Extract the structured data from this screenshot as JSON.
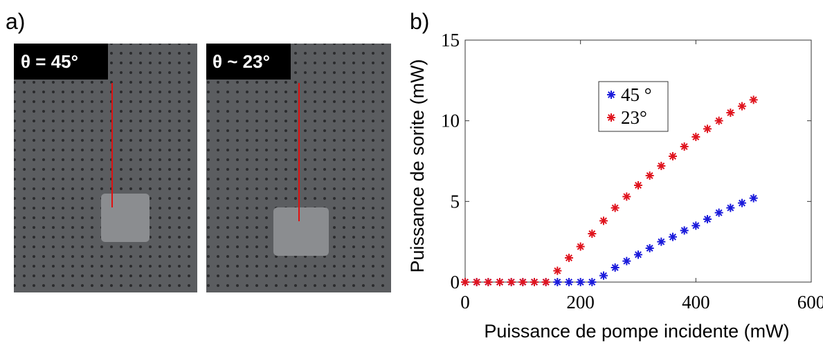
{
  "panels": {
    "a": "a)",
    "b": "b)"
  },
  "photos": [
    {
      "caption": "θ = 45°"
    },
    {
      "caption": "θ ~ 23°"
    }
  ],
  "chart_data": {
    "type": "scatter",
    "xlabel": "Puissance de pompe incidente (mW)",
    "ylabel": "Puissance de sorite (mW)",
    "x": [
      0,
      20,
      40,
      60,
      80,
      100,
      120,
      140,
      160,
      180,
      200,
      220,
      240,
      260,
      280,
      300,
      320,
      340,
      360,
      380,
      400,
      420,
      440,
      460,
      480,
      500
    ],
    "series": [
      {
        "name": "45 °",
        "color": "#1a1adb",
        "values": [
          0,
          0,
          0,
          0,
          0,
          0,
          0,
          0,
          0,
          0,
          0,
          0,
          0.4,
          0.9,
          1.3,
          1.7,
          2.1,
          2.5,
          2.8,
          3.2,
          3.5,
          3.9,
          4.3,
          4.6,
          4.9,
          5.2
        ]
      },
      {
        "name": "23°",
        "color": "#e0141e",
        "values": [
          0,
          0,
          0,
          0,
          0,
          0,
          0,
          0,
          0.7,
          1.5,
          2.2,
          3.0,
          3.8,
          4.6,
          5.3,
          6.0,
          6.6,
          7.2,
          7.8,
          8.4,
          9.0,
          9.5,
          10.0,
          10.5,
          10.9,
          11.3
        ]
      }
    ],
    "xlim": [
      0,
      600
    ],
    "xticks": [
      0,
      200,
      400,
      600
    ],
    "ylim": [
      0,
      15
    ],
    "yticks": [
      0,
      5,
      10,
      15
    ]
  }
}
